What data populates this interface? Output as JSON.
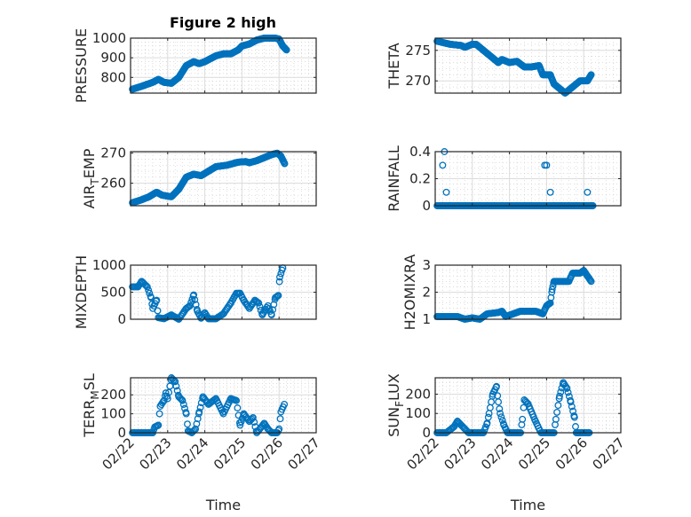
{
  "figure": {
    "title": "Figure 2 high",
    "marker_color": "#0072BD"
  },
  "chart_data": [
    {
      "type": "scatter",
      "ylabel": "PRESSURE",
      "ylim": [
        720,
        1000
      ],
      "yticks": [
        800,
        900,
        1000
      ],
      "col": 0,
      "row": 0,
      "points": [
        [
          0.05,
          740
        ],
        [
          0.3,
          755
        ],
        [
          0.6,
          775
        ],
        [
          0.75,
          790
        ],
        [
          0.9,
          775
        ],
        [
          1.1,
          770
        ],
        [
          1.3,
          800
        ],
        [
          1.5,
          860
        ],
        [
          1.7,
          880
        ],
        [
          1.85,
          870
        ],
        [
          2.0,
          880
        ],
        [
          2.3,
          910
        ],
        [
          2.5,
          920
        ],
        [
          2.7,
          920
        ],
        [
          2.9,
          940
        ],
        [
          3.0,
          960
        ],
        [
          3.2,
          970
        ],
        [
          3.4,
          990
        ],
        [
          3.6,
          1000
        ],
        [
          3.9,
          1000
        ],
        [
          4.0,
          995
        ],
        [
          4.1,
          960
        ],
        [
          4.2,
          940
        ]
      ],
      "step": 0.015
    },
    {
      "type": "scatter",
      "ylabel": "THETA",
      "ylim": [
        268,
        277
      ],
      "yticks": [
        270,
        275
      ],
      "col": 1,
      "row": 0,
      "points": [
        [
          0.05,
          276.5
        ],
        [
          0.4,
          276
        ],
        [
          0.7,
          275.8
        ],
        [
          0.8,
          275.5
        ],
        [
          1.0,
          276
        ],
        [
          1.1,
          276
        ],
        [
          1.3,
          275
        ],
        [
          1.5,
          274
        ],
        [
          1.7,
          273
        ],
        [
          1.8,
          273.5
        ],
        [
          2.0,
          273
        ],
        [
          2.2,
          273.2
        ],
        [
          2.4,
          272.3
        ],
        [
          2.6,
          272.3
        ],
        [
          2.8,
          272.5
        ],
        [
          2.9,
          271
        ],
        [
          3.1,
          271
        ],
        [
          3.2,
          269.5
        ],
        [
          3.4,
          268.5
        ],
        [
          3.5,
          268
        ],
        [
          3.7,
          269
        ],
        [
          3.9,
          270
        ],
        [
          4.1,
          270
        ],
        [
          4.2,
          271
        ]
      ],
      "step": 0.015
    },
    {
      "type": "scatter",
      "ylabel": "AIR_TEMP",
      "ylim": [
        252.5,
        270.5
      ],
      "yticks": [
        260,
        270
      ],
      "col": 0,
      "row": 1,
      "points": [
        [
          0.05,
          253.5
        ],
        [
          0.3,
          254.5
        ],
        [
          0.5,
          255.5
        ],
        [
          0.7,
          257
        ],
        [
          0.85,
          256
        ],
        [
          1.1,
          255.5
        ],
        [
          1.3,
          258
        ],
        [
          1.5,
          262
        ],
        [
          1.7,
          263
        ],
        [
          1.9,
          262.5
        ],
        [
          2.1,
          264
        ],
        [
          2.3,
          265.5
        ],
        [
          2.6,
          266
        ],
        [
          2.9,
          267
        ],
        [
          3.1,
          267.2
        ],
        [
          3.2,
          266.8
        ],
        [
          3.4,
          267.5
        ],
        [
          3.6,
          268.5
        ],
        [
          3.8,
          269.5
        ],
        [
          3.95,
          270
        ],
        [
          4.05,
          269
        ],
        [
          4.15,
          266.5
        ]
      ],
      "step": 0.015
    },
    {
      "type": "scatter",
      "ylabel": "RAINFALL",
      "ylim": [
        0,
        0.4
      ],
      "yticks": [
        0,
        0.2,
        0.4
      ],
      "col": 1,
      "row": 1,
      "points": [
        [
          0.05,
          0
        ],
        [
          4.25,
          0
        ]
      ],
      "step": 0.015,
      "extra": [
        [
          0.2,
          0.3
        ],
        [
          0.25,
          0.4
        ],
        [
          0.3,
          0.1
        ],
        [
          2.95,
          0.3
        ],
        [
          3.0,
          0.3
        ],
        [
          3.1,
          0.1
        ],
        [
          4.1,
          0.1
        ]
      ]
    },
    {
      "type": "scatter",
      "ylabel": "MIXDEPTH",
      "ylim": [
        0,
        1000
      ],
      "yticks": [
        0,
        500,
        1000
      ],
      "col": 0,
      "row": 2,
      "points": [
        [
          0.05,
          600
        ],
        [
          0.2,
          600
        ],
        [
          0.3,
          700
        ],
        [
          0.45,
          600
        ],
        [
          0.55,
          400
        ],
        [
          0.6,
          200
        ],
        [
          0.7,
          350
        ],
        [
          0.75,
          30
        ],
        [
          0.9,
          10
        ],
        [
          1.1,
          80
        ],
        [
          1.3,
          0
        ],
        [
          1.5,
          200
        ],
        [
          1.6,
          250
        ],
        [
          1.7,
          450
        ],
        [
          1.8,
          150
        ],
        [
          1.9,
          20
        ],
        [
          2.0,
          120
        ],
        [
          2.1,
          10
        ],
        [
          2.3,
          10
        ],
        [
          2.5,
          100
        ],
        [
          2.7,
          300
        ],
        [
          2.85,
          480
        ],
        [
          2.95,
          480
        ],
        [
          3.05,
          350
        ],
        [
          3.2,
          200
        ],
        [
          3.35,
          350
        ],
        [
          3.45,
          300
        ],
        [
          3.55,
          80
        ],
        [
          3.7,
          250
        ],
        [
          3.8,
          80
        ],
        [
          3.9,
          400
        ],
        [
          3.98,
          440
        ],
        [
          4.02,
          780
        ],
        [
          4.1,
          950
        ]
      ],
      "step": 0.03
    },
    {
      "type": "scatter",
      "ylabel": "H2OMIXRA",
      "ylim": [
        1,
        3
      ],
      "yticks": [
        1,
        2,
        3
      ],
      "col": 1,
      "row": 2,
      "points": [
        [
          0.05,
          1.1
        ],
        [
          0.6,
          1.1
        ],
        [
          0.8,
          1.0
        ],
        [
          1.0,
          1.05
        ],
        [
          1.2,
          1.0
        ],
        [
          1.4,
          1.2
        ],
        [
          1.7,
          1.25
        ],
        [
          1.8,
          1.3
        ],
        [
          1.9,
          1.1
        ],
        [
          2.1,
          1.2
        ],
        [
          2.3,
          1.3
        ],
        [
          2.7,
          1.3
        ],
        [
          2.9,
          1.2
        ],
        [
          3.0,
          1.5
        ],
        [
          3.1,
          1.6
        ],
        [
          3.15,
          2.1
        ],
        [
          3.2,
          2.4
        ],
        [
          3.6,
          2.4
        ],
        [
          3.7,
          2.7
        ],
        [
          3.9,
          2.7
        ],
        [
          4.0,
          2.8
        ],
        [
          4.1,
          2.6
        ],
        [
          4.2,
          2.4
        ]
      ],
      "step": 0.02
    },
    {
      "type": "scatter",
      "ylabel": "TERR_MSL",
      "ylim": [
        0,
        290
      ],
      "yticks": [
        0,
        100,
        200
      ],
      "col": 0,
      "row": 3,
      "points": [
        [
          0.05,
          0
        ],
        [
          0.6,
          0
        ],
        [
          0.65,
          30
        ],
        [
          0.75,
          40
        ],
        [
          0.8,
          140
        ],
        [
          0.9,
          170
        ],
        [
          0.95,
          210
        ],
        [
          1.0,
          180
        ],
        [
          1.1,
          290
        ],
        [
          1.2,
          270
        ],
        [
          1.3,
          190
        ],
        [
          1.4,
          170
        ],
        [
          1.5,
          100
        ],
        [
          1.55,
          10
        ],
        [
          1.65,
          0
        ],
        [
          1.75,
          20
        ],
        [
          1.85,
          110
        ],
        [
          1.95,
          190
        ],
        [
          2.1,
          150
        ],
        [
          2.3,
          180
        ],
        [
          2.5,
          100
        ],
        [
          2.7,
          180
        ],
        [
          2.85,
          170
        ],
        [
          2.95,
          40
        ],
        [
          3.05,
          100
        ],
        [
          3.2,
          60
        ],
        [
          3.3,
          80
        ],
        [
          3.4,
          0
        ],
        [
          3.6,
          50
        ],
        [
          3.7,
          20
        ],
        [
          3.8,
          0
        ],
        [
          3.95,
          0
        ],
        [
          4.0,
          20
        ],
        [
          4.05,
          110
        ],
        [
          4.14,
          150
        ]
      ],
      "step": 0.03
    },
    {
      "type": "scatter",
      "ylabel": "SUN_FLUX",
      "ylim": [
        0,
        285
      ],
      "yticks": [
        0,
        100,
        200
      ],
      "col": 1,
      "row": 3,
      "points": [
        [
          0.05,
          0
        ],
        [
          0.3,
          0
        ],
        [
          0.5,
          30
        ],
        [
          0.6,
          60
        ],
        [
          0.8,
          20
        ],
        [
          0.9,
          0
        ],
        [
          1.3,
          0
        ],
        [
          1.4,
          50
        ],
        [
          1.45,
          100
        ],
        [
          1.55,
          200
        ],
        [
          1.65,
          240
        ],
        [
          1.7,
          160
        ],
        [
          1.75,
          100
        ],
        [
          1.85,
          40
        ],
        [
          1.95,
          0
        ],
        [
          2.3,
          0
        ],
        [
          2.35,
          70
        ],
        [
          2.4,
          170
        ],
        [
          2.5,
          150
        ],
        [
          2.7,
          60
        ],
        [
          2.85,
          0
        ],
        [
          3.2,
          0
        ],
        [
          3.25,
          70
        ],
        [
          3.35,
          190
        ],
        [
          3.45,
          260
        ],
        [
          3.55,
          230
        ],
        [
          3.65,
          160
        ],
        [
          3.75,
          80
        ],
        [
          3.8,
          0
        ],
        [
          4.15,
          0
        ]
      ],
      "step": 0.03
    }
  ],
  "xaxis": {
    "label": "Time",
    "xlim": [
      0,
      5
    ],
    "ticklabels": [
      "02/22",
      "02/23",
      "02/24",
      "02/25",
      "02/26",
      "02/27"
    ]
  }
}
